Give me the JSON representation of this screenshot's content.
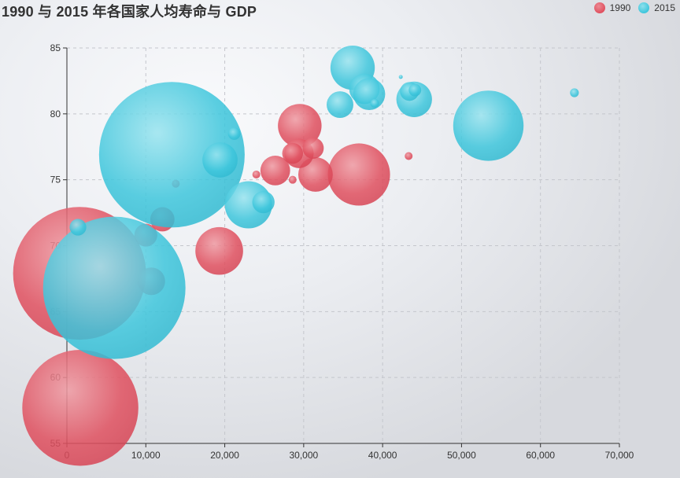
{
  "chart_data": {
    "type": "scatter",
    "title": "1990 与 2015 年各国家人均寿命与 GDP",
    "xlabel": "",
    "ylabel": "",
    "xlim": [
      0,
      70000
    ],
    "ylim": [
      55,
      85
    ],
    "x_ticks": [
      "0",
      "10,000",
      "20,000",
      "30,000",
      "40,000",
      "50,000",
      "60,000",
      "70,000"
    ],
    "y_ticks": [
      "55",
      "60",
      "65",
      "70",
      "75",
      "80",
      "85"
    ],
    "grid": true,
    "legend_position": "top-right",
    "series": [
      {
        "name": "1990",
        "color": "#e0505f",
        "points": [
          {
            "x": 1600,
            "y": 67.9,
            "size": 1140
          },
          {
            "x": 1700,
            "y": 57.7,
            "size": 870
          },
          {
            "x": 19300,
            "y": 69.6,
            "size": 147
          },
          {
            "x": 37000,
            "y": 75.4,
            "size": 250
          },
          {
            "x": 29500,
            "y": 79.1,
            "size": 123
          },
          {
            "x": 31500,
            "y": 75.4,
            "size": 77
          },
          {
            "x": 26400,
            "y": 75.7,
            "size": 57
          },
          {
            "x": 29400,
            "y": 77.0,
            "size": 56
          },
          {
            "x": 31200,
            "y": 77.4,
            "size": 29
          },
          {
            "x": 28600,
            "y": 77.0,
            "size": 28
          },
          {
            "x": 12100,
            "y": 72.0,
            "size": 38
          },
          {
            "x": 10700,
            "y": 67.3,
            "size": 49
          },
          {
            "x": 10000,
            "y": 70.8,
            "size": 34
          },
          {
            "x": 43300,
            "y": 76.8,
            "size": 4
          },
          {
            "x": 24000,
            "y": 75.4,
            "size": 4
          },
          {
            "x": 28600,
            "y": 75.0,
            "size": 4
          },
          {
            "x": 13800,
            "y": 74.7,
            "size": 4
          }
        ]
      },
      {
        "name": "2015",
        "color": "#3ec6dc",
        "points": [
          {
            "x": 13300,
            "y": 76.9,
            "size": 1370
          },
          {
            "x": 6000,
            "y": 66.8,
            "size": 1310
          },
          {
            "x": 53400,
            "y": 79.1,
            "size": 320
          },
          {
            "x": 23000,
            "y": 73.1,
            "size": 144
          },
          {
            "x": 36200,
            "y": 83.5,
            "size": 127
          },
          {
            "x": 44000,
            "y": 81.1,
            "size": 82
          },
          {
            "x": 19400,
            "y": 76.5,
            "size": 80
          },
          {
            "x": 37700,
            "y": 81.9,
            "size": 60
          },
          {
            "x": 38300,
            "y": 81.5,
            "size": 66
          },
          {
            "x": 34600,
            "y": 80.7,
            "size": 46
          },
          {
            "x": 24900,
            "y": 73.3,
            "size": 32
          },
          {
            "x": 43400,
            "y": 81.7,
            "size": 23
          },
          {
            "x": 44100,
            "y": 81.8,
            "size": 10
          },
          {
            "x": 21200,
            "y": 78.5,
            "size": 10
          },
          {
            "x": 1400,
            "y": 71.4,
            "size": 18
          },
          {
            "x": 64300,
            "y": 81.6,
            "size": 5
          },
          {
            "x": 39000,
            "y": 80.8,
            "size": 5
          },
          {
            "x": 42300,
            "y": 82.8,
            "size": 1
          }
        ]
      }
    ]
  }
}
